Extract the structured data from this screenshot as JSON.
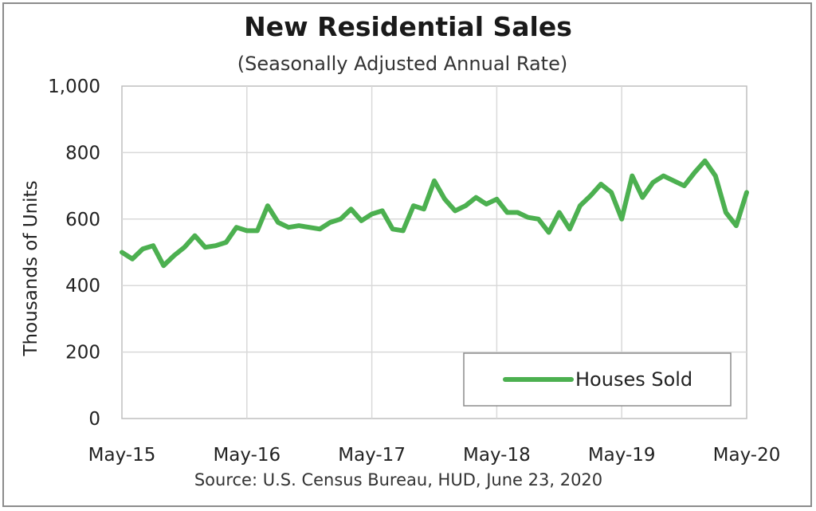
{
  "chart_data": {
    "type": "line",
    "title": "New Residential Sales",
    "subtitle": "(Seasonally Adjusted Annual Rate)",
    "ylabel": "Thousands of Units",
    "xlabel": "",
    "source": "Source:  U.S. Census Bureau, HUD, June 23, 2020",
    "ylim": [
      0,
      1000
    ],
    "yticks": [
      "0",
      "200",
      "400",
      "600",
      "800",
      "1,000"
    ],
    "xticks": [
      "May-15",
      "May-16",
      "May-17",
      "May-18",
      "May-19",
      "May-20"
    ],
    "grid": true,
    "legend_position": "bottom-right",
    "color": "#4cb050",
    "series": [
      {
        "name": "Houses Sold",
        "values": [
          500,
          480,
          510,
          520,
          460,
          490,
          515,
          550,
          515,
          520,
          530,
          575,
          565,
          565,
          640,
          590,
          575,
          580,
          575,
          570,
          590,
          600,
          630,
          595,
          615,
          625,
          570,
          565,
          640,
          630,
          715,
          660,
          625,
          640,
          665,
          645,
          660,
          620,
          620,
          605,
          600,
          560,
          620,
          570,
          640,
          670,
          705,
          680,
          600,
          730,
          665,
          710,
          730,
          715,
          700,
          740,
          775,
          730,
          620,
          580,
          680
        ]
      }
    ]
  }
}
